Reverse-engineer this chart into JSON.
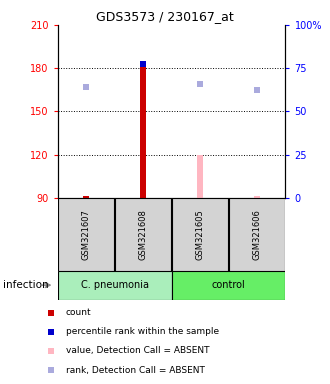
{
  "title": "GDS3573 / 230167_at",
  "samples": [
    "GSM321607",
    "GSM321608",
    "GSM321605",
    "GSM321606"
  ],
  "ylim_left": [
    90,
    210
  ],
  "yticks_left": [
    90,
    120,
    150,
    180,
    210
  ],
  "yright_labels": [
    "0",
    "25",
    "50",
    "75",
    "100%"
  ],
  "bar_base": 90,
  "count_values": [
    91,
    181,
    120,
    91
  ],
  "count_colors": [
    "#CC0000",
    "#CC0000",
    "#FFB6C1",
    "#FFB6C1"
  ],
  "percentile_values": [
    null,
    183,
    null,
    null
  ],
  "percentile_color": "#0000CC",
  "rank_absent_values": [
    167,
    null,
    169,
    165
  ],
  "rank_absent_color": "#AAAADD",
  "sample_box_color": "#D3D3D3",
  "cpneumonia_color": "#AAEEBB",
  "control_color": "#66EE66",
  "legend_items": [
    "count",
    "percentile rank within the sample",
    "value, Detection Call = ABSENT",
    "rank, Detection Call = ABSENT"
  ],
  "legend_colors": [
    "#CC0000",
    "#0000CC",
    "#FFB6C1",
    "#AAAADD"
  ],
  "infection_label": "infection"
}
